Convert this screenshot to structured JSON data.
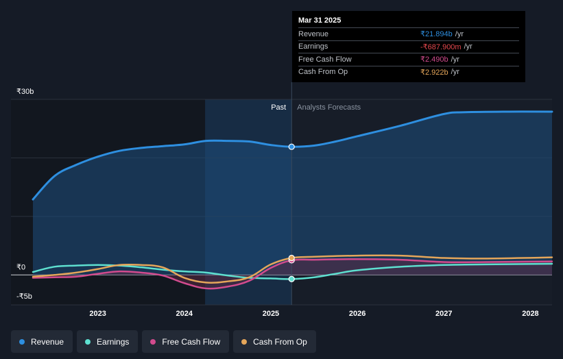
{
  "chart_data": {
    "type": "line",
    "x_ticks": [
      "2023",
      "2024",
      "2025",
      "2026",
      "2027",
      "2028"
    ],
    "y_tick_labels": [
      "₹30b",
      "₹0",
      "-₹5b"
    ],
    "y_ticks": [
      30,
      0,
      -5
    ],
    "ylim": [
      -5,
      30
    ],
    "xlim": [
      2022.25,
      2028.25
    ],
    "past_label": "Past",
    "forecast_label": "Analysts Forecasts",
    "divider_x": 2025.24,
    "shaded_past_start": 2024.24,
    "series": [
      {
        "name": "Revenue",
        "color": "#2e8fe0",
        "points": [
          [
            2022.25,
            12.9
          ],
          [
            2022.5,
            16.9
          ],
          [
            2022.75,
            18.8
          ],
          [
            2023.0,
            20.2
          ],
          [
            2023.25,
            21.2
          ],
          [
            2023.5,
            21.7
          ],
          [
            2023.75,
            22.0
          ],
          [
            2024.0,
            22.3
          ],
          [
            2024.25,
            22.9
          ],
          [
            2024.5,
            22.9
          ],
          [
            2024.75,
            22.8
          ],
          [
            2025.0,
            22.2
          ],
          [
            2025.24,
            21.9
          ],
          [
            2025.5,
            22.1
          ],
          [
            2025.75,
            22.8
          ],
          [
            2026.0,
            23.7
          ],
          [
            2026.5,
            25.5
          ],
          [
            2027.0,
            27.5
          ],
          [
            2027.25,
            27.8
          ],
          [
            2027.75,
            27.9
          ],
          [
            2028.25,
            27.9
          ]
        ]
      },
      {
        "name": "Earnings",
        "color": "#5ee0d0",
        "points": [
          [
            2022.25,
            0.5
          ],
          [
            2022.5,
            1.4
          ],
          [
            2022.75,
            1.6
          ],
          [
            2023.0,
            1.7
          ],
          [
            2023.25,
            1.6
          ],
          [
            2023.5,
            1.3
          ],
          [
            2023.75,
            0.9
          ],
          [
            2024.0,
            0.6
          ],
          [
            2024.25,
            0.4
          ],
          [
            2024.5,
            -0.1
          ],
          [
            2024.75,
            -0.5
          ],
          [
            2025.0,
            -0.6
          ],
          [
            2025.24,
            -0.7
          ],
          [
            2025.5,
            -0.4
          ],
          [
            2025.75,
            0.2
          ],
          [
            2026.0,
            0.8
          ],
          [
            2026.5,
            1.4
          ],
          [
            2027.0,
            1.7
          ],
          [
            2027.5,
            1.8
          ],
          [
            2028.25,
            1.9
          ]
        ]
      },
      {
        "name": "Free Cash Flow",
        "color": "#d24b8e",
        "points": [
          [
            2022.25,
            -0.5
          ],
          [
            2022.5,
            -0.4
          ],
          [
            2022.75,
            -0.3
          ],
          [
            2023.0,
            0.2
          ],
          [
            2023.25,
            0.6
          ],
          [
            2023.5,
            0.4
          ],
          [
            2023.75,
            -0.1
          ],
          [
            2024.0,
            -1.4
          ],
          [
            2024.25,
            -2.3
          ],
          [
            2024.5,
            -2.0
          ],
          [
            2024.75,
            -1.0
          ],
          [
            2025.0,
            1.2
          ],
          [
            2025.24,
            2.5
          ],
          [
            2025.5,
            2.6
          ],
          [
            2026.0,
            2.7
          ],
          [
            2026.5,
            2.6
          ],
          [
            2027.0,
            2.2
          ],
          [
            2027.5,
            2.2
          ],
          [
            2028.25,
            2.3
          ]
        ]
      },
      {
        "name": "Cash From Op",
        "color": "#e5a65a",
        "points": [
          [
            2022.25,
            -0.3
          ],
          [
            2022.5,
            0.0
          ],
          [
            2022.75,
            0.4
          ],
          [
            2023.0,
            1.0
          ],
          [
            2023.25,
            1.7
          ],
          [
            2023.5,
            1.7
          ],
          [
            2023.75,
            1.3
          ],
          [
            2024.0,
            -0.5
          ],
          [
            2024.25,
            -1.3
          ],
          [
            2024.5,
            -1.1
          ],
          [
            2024.75,
            -0.4
          ],
          [
            2025.0,
            1.8
          ],
          [
            2025.24,
            2.9
          ],
          [
            2025.5,
            3.1
          ],
          [
            2026.0,
            3.3
          ],
          [
            2026.5,
            3.3
          ],
          [
            2027.0,
            2.9
          ],
          [
            2027.5,
            2.8
          ],
          [
            2028.25,
            3.0
          ]
        ]
      }
    ]
  },
  "tooltip": {
    "date": "Mar 31 2025",
    "rows": [
      {
        "label": "Revenue",
        "value": "₹21.894b",
        "unit": "/yr",
        "color": "#2e8fe0"
      },
      {
        "label": "Earnings",
        "value": "-₹687.900m",
        "unit": "/yr",
        "color": "#e5484d"
      },
      {
        "label": "Free Cash Flow",
        "value": "₹2.490b",
        "unit": "/yr",
        "color": "#d24b8e"
      },
      {
        "label": "Cash From Op",
        "value": "₹2.922b",
        "unit": "/yr",
        "color": "#e5a65a"
      }
    ]
  },
  "legend": [
    {
      "label": "Revenue",
      "color": "#2e8fe0"
    },
    {
      "label": "Earnings",
      "color": "#5ee0d0"
    },
    {
      "label": "Free Cash Flow",
      "color": "#d24b8e"
    },
    {
      "label": "Cash From Op",
      "color": "#e5a65a"
    }
  ]
}
